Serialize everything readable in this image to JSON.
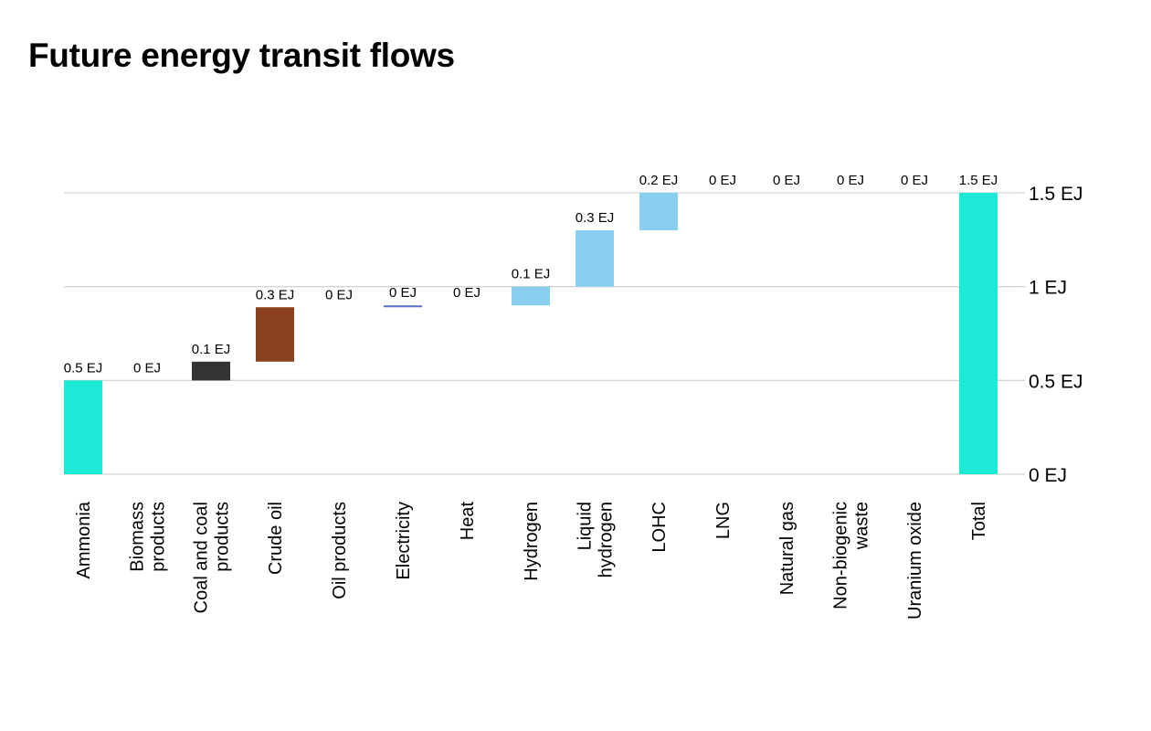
{
  "chart_data": {
    "type": "bar",
    "subtype": "waterfall",
    "title": "Future energy transit flows",
    "unit": "EJ",
    "ylim": [
      0,
      1.5
    ],
    "yticks": [
      "0 EJ",
      "0.5 EJ",
      "1 EJ",
      "1.5 EJ"
    ],
    "ytick_values": [
      0,
      0.5,
      1,
      1.5
    ],
    "y_axis_side": "right",
    "grid": true,
    "categories": [
      "Ammonia",
      "Biomass products",
      "Coal and coal products",
      "Crude oil",
      "Oil products",
      "Electricity",
      "Heat",
      "Hydrogen",
      "Liquid hydrogen",
      "LOHC",
      "LNG",
      "Natural gas",
      "Non-biogenic waste",
      "Uranium oxide",
      "Total"
    ],
    "category_lines": [
      [
        "Ammonia"
      ],
      [
        "Biomass",
        "products"
      ],
      [
        "Coal and coal",
        "products"
      ],
      [
        "Crude oil"
      ],
      [
        "Oil products"
      ],
      [
        "Electricity"
      ],
      [
        "Heat"
      ],
      [
        "Hydrogen"
      ],
      [
        "Liquid",
        "hydrogen"
      ],
      [
        "LOHC"
      ],
      [
        "LNG"
      ],
      [
        "Natural gas"
      ],
      [
        "Non-biogenic",
        "waste"
      ],
      [
        "Uranium oxide"
      ],
      [
        "Total"
      ]
    ],
    "values": [
      0.5,
      0.0,
      0.1,
      0.29,
      0.0,
      0.01,
      0.0,
      0.1,
      0.3,
      0.2,
      0.0,
      0.0,
      0.0,
      0.0,
      1.5
    ],
    "value_labels": [
      "0.5 EJ",
      "0 EJ",
      "0.1 EJ",
      "0.3 EJ",
      "0 EJ",
      "0 EJ",
      "0 EJ",
      "0.1 EJ",
      "0.3 EJ",
      "0.2 EJ",
      "0 EJ",
      "0 EJ",
      "0 EJ",
      "0 EJ",
      "1.5 EJ"
    ],
    "is_total": [
      false,
      false,
      false,
      false,
      false,
      false,
      false,
      false,
      false,
      false,
      false,
      false,
      false,
      false,
      true
    ],
    "colors": [
      "#1de9d7",
      "#6aa84f",
      "#333333",
      "#8b4120",
      "#b45f06",
      "#5b72c8",
      "#e06666",
      "#88ceef",
      "#88ceef",
      "#88ceef",
      "#7fb3d5",
      "#999999",
      "#a0a0a0",
      "#7f7f7f",
      "#1de9d7"
    ]
  }
}
